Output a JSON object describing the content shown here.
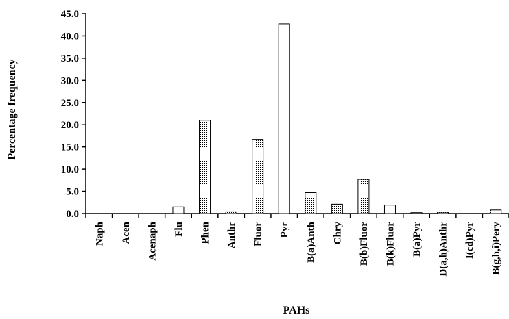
{
  "chart_data": {
    "type": "bar",
    "title": "",
    "xlabel": "PAHs",
    "ylabel": "Percentage frequency",
    "categories": [
      "Naph",
      "Acen",
      "Acenaph",
      "Flu",
      "Phen",
      "Anthr",
      "Fluor",
      "Pyr",
      "B(a)Anth",
      "Chry",
      "B(b)Fluor",
      "B(k)Fluor",
      "B(a)Pyr",
      "D(a,h)Anthr",
      "I(cd)Pyr",
      "B(g,h,i)Pery"
    ],
    "values": [
      0.0,
      0.0,
      0.0,
      1.5,
      21.0,
      0.4,
      16.7,
      42.7,
      4.7,
      2.1,
      7.7,
      1.9,
      0.2,
      0.3,
      0.0,
      0.8
    ],
    "ylim": [
      0,
      45
    ],
    "yticks": [
      "0.0",
      "5.0",
      "10.0",
      "15.0",
      "20.0",
      "25.0",
      "30.0",
      "35.0",
      "40.0",
      "45.0"
    ],
    "grid": false,
    "bar_fill": "dotted",
    "colors": {
      "bar_stroke": "#000000",
      "dot": "#000000",
      "background": "#ffffff"
    }
  }
}
